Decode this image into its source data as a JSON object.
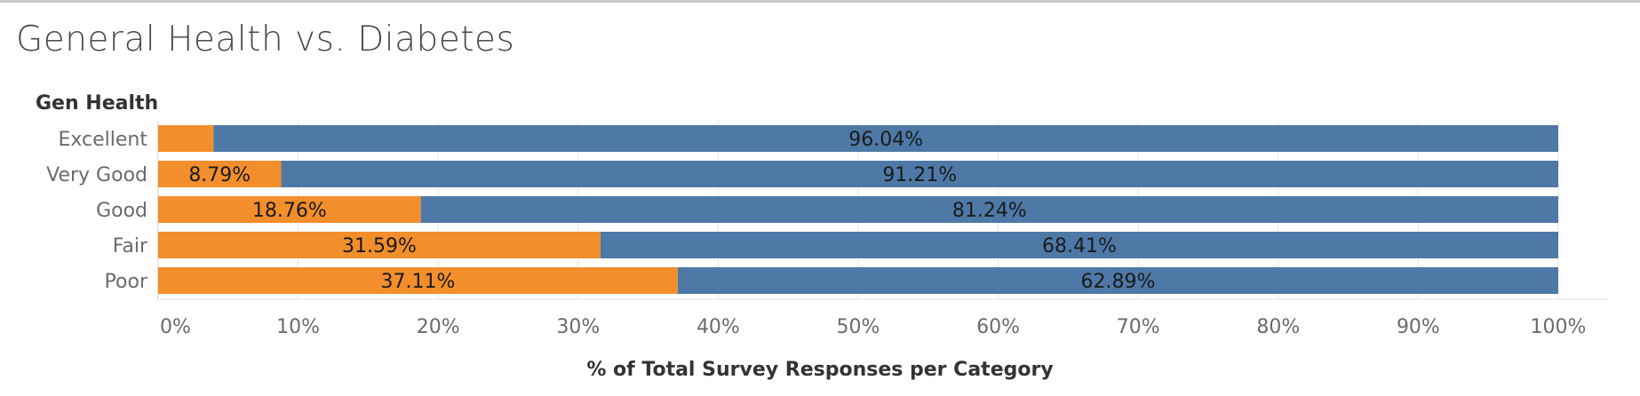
{
  "chart_data": {
    "type": "bar",
    "orientation": "horizontal",
    "stacked": true,
    "title": "General Health vs. Diabetes",
    "row_header": "Gen Health",
    "xlabel": "% of Total Survey Responses per Category",
    "categories": [
      "Excellent",
      "Very Good",
      "Good",
      "Fair",
      "Poor"
    ],
    "series": [
      {
        "color": "#f28e2b",
        "values": [
          3.96,
          8.79,
          18.76,
          31.59,
          37.11
        ],
        "labels": [
          "",
          "8.79%",
          "18.76%",
          "31.59%",
          "37.11%"
        ]
      },
      {
        "color": "#4e79a7",
        "values": [
          96.04,
          91.21,
          81.24,
          68.41,
          62.89
        ],
        "labels": [
          "96.04%",
          "91.21%",
          "81.24%",
          "68.41%",
          "62.89%"
        ]
      }
    ],
    "xlim": [
      0,
      100
    ],
    "x_ticks": [
      "0%",
      "10%",
      "20%",
      "30%",
      "40%",
      "50%",
      "60%",
      "70%",
      "80%",
      "90%",
      "100%"
    ],
    "grid": true
  }
}
